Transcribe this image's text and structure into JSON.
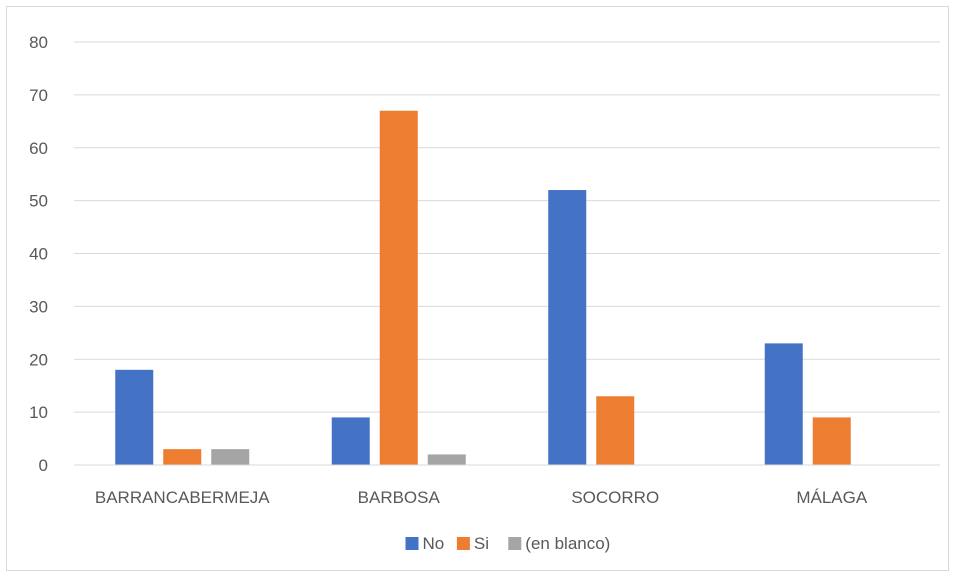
{
  "chart_data": {
    "type": "bar",
    "categories": [
      "BARRANCABERMEJA",
      "BARBOSA",
      "SOCORRO",
      "MÁLAGA"
    ],
    "series": [
      {
        "name": "No",
        "color": "#4472c4",
        "values": [
          18,
          9,
          52,
          23
        ]
      },
      {
        "name": "Si",
        "color": "#ed7d31",
        "values": [
          3,
          67,
          13,
          9
        ]
      },
      {
        "name": "(en blanco)",
        "color": "#a5a5a5",
        "values": [
          3,
          2,
          null,
          null
        ]
      }
    ],
    "ylim": [
      0,
      80
    ],
    "yticks": [
      0,
      10,
      20,
      30,
      40,
      50,
      60,
      70,
      80
    ],
    "grid": true,
    "legend": "bottom"
  }
}
